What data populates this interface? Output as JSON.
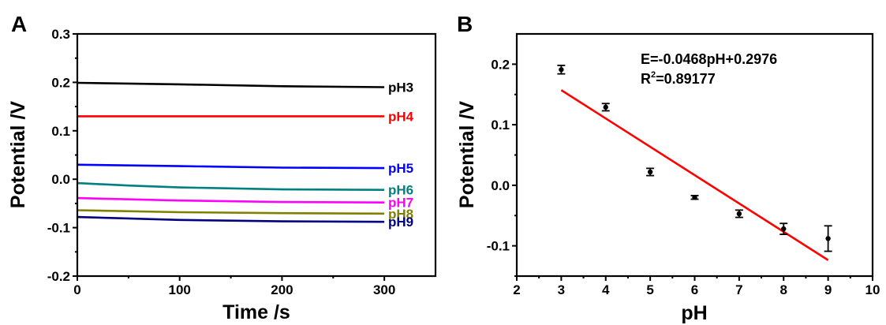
{
  "chart_data": [
    {
      "panel_label": "A",
      "type": "line",
      "xlabel": "Time /s",
      "ylabel": "Potential /V",
      "xlim": [
        0,
        350
      ],
      "ylim": [
        -0.2,
        0.3
      ],
      "xticks": [
        "0",
        "100",
        "200",
        "300"
      ],
      "yticks": [
        "-0.2",
        "-0.1",
        "0.0",
        "0.1",
        "0.2",
        "0.3"
      ],
      "grid": false,
      "series": [
        {
          "name": "pH3",
          "color": "#000000",
          "x": [
            0,
            100,
            200,
            300
          ],
          "y": [
            0.199,
            0.196,
            0.192,
            0.19
          ]
        },
        {
          "name": "pH4",
          "color": "#ff0000",
          "x": [
            0,
            100,
            200,
            300
          ],
          "y": [
            0.13,
            0.13,
            0.13,
            0.13
          ]
        },
        {
          "name": "pH5",
          "color": "#0000ff",
          "x": [
            0,
            100,
            200,
            300
          ],
          "y": [
            0.03,
            0.027,
            0.024,
            0.023
          ]
        },
        {
          "name": "pH6",
          "color": "#008080",
          "x": [
            0,
            50,
            100,
            200,
            300
          ],
          "y": [
            -0.008,
            -0.013,
            -0.017,
            -0.021,
            -0.022
          ]
        },
        {
          "name": "pH7",
          "color": "#ff00ff",
          "x": [
            0,
            100,
            200,
            300
          ],
          "y": [
            -0.039,
            -0.044,
            -0.047,
            -0.048
          ]
        },
        {
          "name": "pH8",
          "color": "#808000",
          "x": [
            0,
            100,
            200,
            300
          ],
          "y": [
            -0.064,
            -0.068,
            -0.07,
            -0.071
          ]
        },
        {
          "name": "pH9",
          "color": "#000080",
          "x": [
            0,
            100,
            200,
            300
          ],
          "y": [
            -0.078,
            -0.084,
            -0.087,
            -0.088
          ]
        }
      ]
    },
    {
      "panel_label": "B",
      "type": "scatter",
      "xlabel": "pH",
      "ylabel": "Potential /V",
      "xlim": [
        2,
        10
      ],
      "ylim": [
        -0.15,
        0.25
      ],
      "xticks": [
        "2",
        "3",
        "4",
        "5",
        "6",
        "7",
        "8",
        "9",
        "10"
      ],
      "yticks": [
        "-0.1",
        "0.0",
        "0.1",
        "0.2"
      ],
      "grid": false,
      "points": {
        "x": [
          3,
          4,
          5,
          6,
          7,
          8,
          9
        ],
        "y": [
          0.191,
          0.129,
          0.022,
          -0.02,
          -0.047,
          -0.072,
          -0.088
        ],
        "err": [
          0.007,
          0.006,
          0.006,
          0.003,
          0.006,
          0.009,
          0.021
        ],
        "color": "#000000"
      },
      "fit": {
        "x": [
          3,
          9
        ],
        "slope": -0.0468,
        "intercept": 0.2976,
        "color": "#ff0000"
      },
      "annotation": {
        "line1": "E=-0.0468pH+0.2976",
        "r2_prefix": "R",
        "r2_sup": "2",
        "r2_value": "=0.89177"
      }
    }
  ]
}
